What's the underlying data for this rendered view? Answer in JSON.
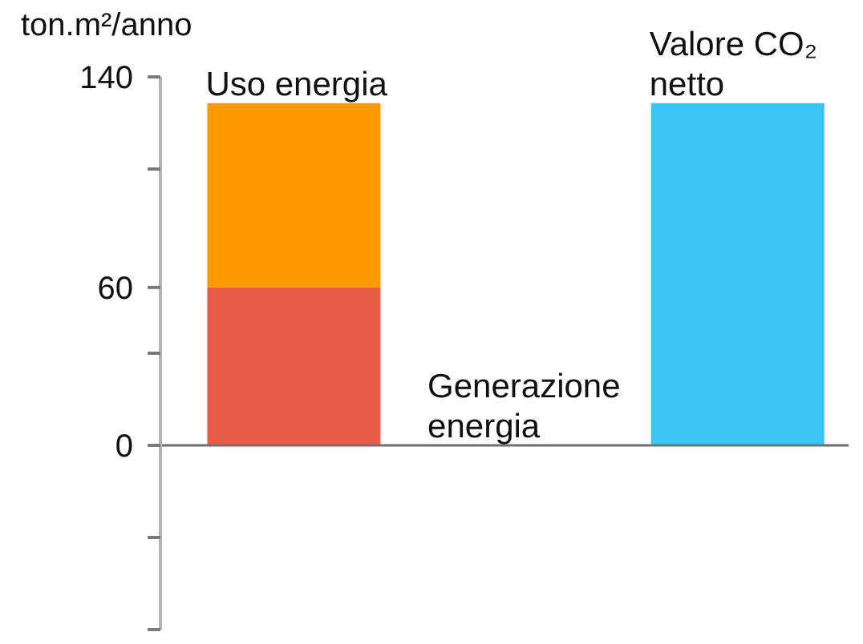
{
  "chart_data": {
    "type": "bar",
    "ylabel": "ton.m²/anno",
    "categories": [
      "Uso energia",
      "Generazione energia",
      "Valore CO₂ netto"
    ],
    "stacked": true,
    "series": [
      {
        "colors": [
          "#ea5c48",
          "#ea5c48",
          "#3cc4f4"
        ],
        "values": [
          60,
          null,
          130
        ]
      },
      {
        "color": "#ff9900",
        "values": [
          70,
          null,
          null
        ]
      }
    ],
    "ylim": [
      -70,
      140
    ],
    "yticks": [
      {
        "value": -70,
        "label": null
      },
      {
        "value": -35,
        "label": null
      },
      0,
      {
        "value": 35,
        "label": null
      },
      60,
      {
        "value": 105,
        "label": null
      },
      140
    ],
    "ref_lines": [
      {
        "axis": "y",
        "value": 0,
        "color": "#707070"
      }
    ]
  }
}
